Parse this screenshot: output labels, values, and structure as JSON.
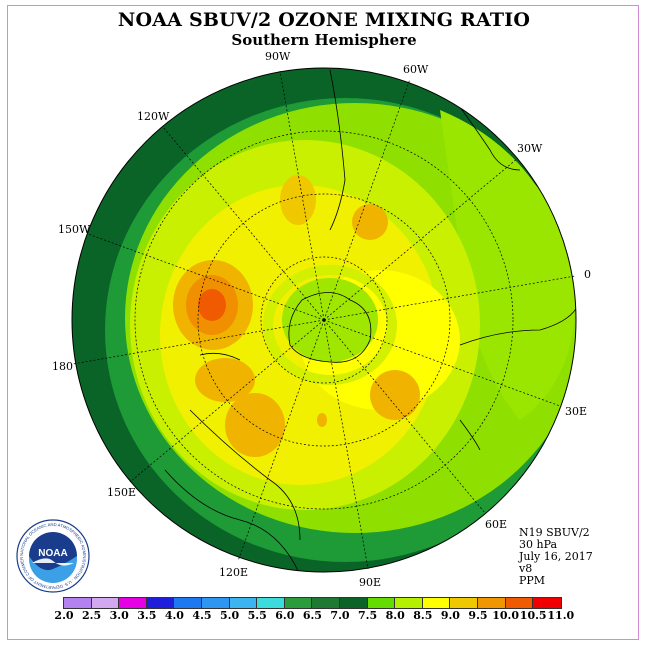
{
  "title": "NOAA SBUV/2 OZONE MIXING RATIO",
  "subtitle": "Southern Hemisphere",
  "longitudes": {
    "w90": "90W",
    "w60": "60W",
    "w30": "30W",
    "w120": "120W",
    "w150": "150W",
    "e0": "0",
    "w180": "180",
    "e30": "30E",
    "e60": "60E",
    "e90": "90E",
    "e120": "120E",
    "e150": "150E"
  },
  "info": {
    "line1": "N19 SBUV/2",
    "line2": "30 hPa",
    "line3": "July 16, 2017",
    "line4": "v8",
    "line5": "PPM"
  },
  "logo": {
    "text": "NOAA",
    "ring_text": "NATIONAL OCEANIC AND ATMOSPHERIC ADMINISTRATION · U.S. DEPARTMENT OF COMMERCE"
  },
  "colorbar": {
    "ticks": [
      "2.0",
      "2.5",
      "3.0",
      "3.5",
      "4.0",
      "4.5",
      "5.0",
      "5.5",
      "6.0",
      "6.5",
      "7.0",
      "7.5",
      "8.0",
      "8.5",
      "9.0",
      "9.5",
      "10.0",
      "10.5",
      "11.0"
    ],
    "colors": [
      "#b482f0",
      "#d2a8f0",
      "#e600e6",
      "#1e1edc",
      "#1e78f0",
      "#2d96f0",
      "#3cb4f0",
      "#3cdcdc",
      "#2a9c3c",
      "#1e7a32",
      "#0a6428",
      "#64dc00",
      "#b4f000",
      "#ffff00",
      "#f0c800",
      "#f09600",
      "#f05a00",
      "#f00000",
      "#96502d"
    ]
  }
}
